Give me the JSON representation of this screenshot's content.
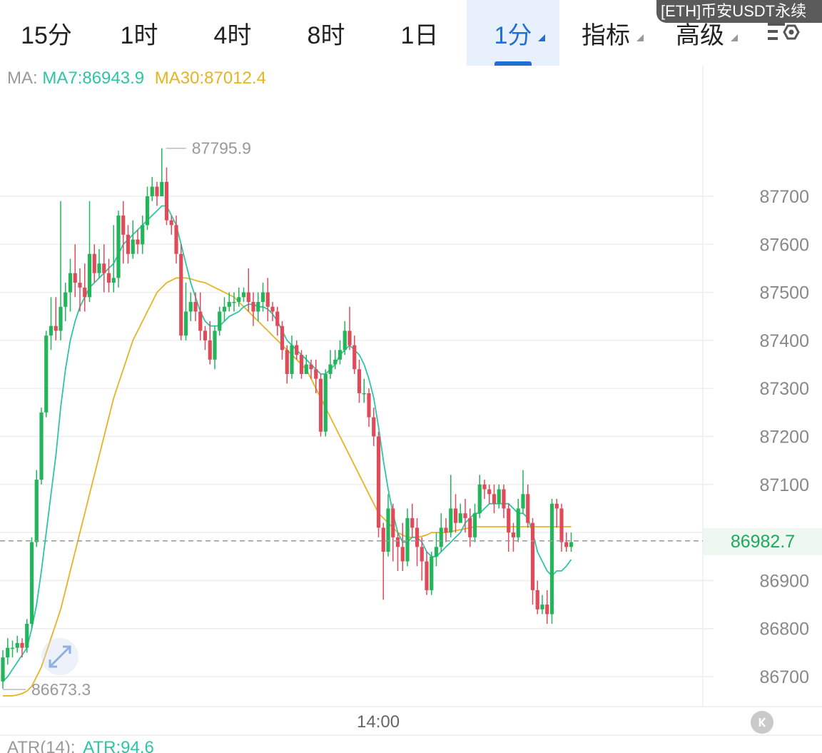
{
  "tabs": [
    {
      "label": "15分",
      "active": false,
      "dropdown": false
    },
    {
      "label": "1时",
      "active": false,
      "dropdown": false
    },
    {
      "label": "4时",
      "active": false,
      "dropdown": false
    },
    {
      "label": "8时",
      "active": false,
      "dropdown": false
    },
    {
      "label": "1日",
      "active": false,
      "dropdown": false
    },
    {
      "label": "1分",
      "active": true,
      "dropdown": true
    },
    {
      "label": "指标",
      "active": false,
      "dropdown": true
    },
    {
      "label": "高级",
      "active": false,
      "dropdown": true
    }
  ],
  "settings_icon": "chart-settings-icon",
  "symbol_badge": "[ETH]币安USDT永续",
  "ma_legend": {
    "label": "MA:",
    "ma7": "MA7:86943.9",
    "ma30": "MA30:87012.4"
  },
  "colors": {
    "up": "#22b55a",
    "down": "#e04b5a",
    "ma7": "#2ec4a6",
    "ma30": "#e6b422",
    "accent": "#1f6fd6"
  },
  "chart_data": {
    "type": "candlestick",
    "interval": "1分",
    "y_axis_labels": [
      "87700",
      "87600",
      "87500",
      "87400",
      "87300",
      "87200",
      "87100",
      "86900",
      "86800",
      "86700"
    ],
    "ylim": [
      86640,
      87920
    ],
    "x_axis_label": "14:00",
    "current_price": "86982.7",
    "high_marker": "87795.9",
    "low_marker": "86673.3",
    "candles": [
      [
        86690,
        86740,
        86675,
        86755
      ],
      [
        86740,
        86760,
        86725,
        86780
      ],
      [
        86760,
        86760,
        86740,
        86775
      ],
      [
        86760,
        86770,
        86750,
        86785
      ],
      [
        86770,
        86760,
        86740,
        86780
      ],
      [
        86760,
        86810,
        86750,
        86820
      ],
      [
        86810,
        86980,
        86800,
        86990
      ],
      [
        86980,
        87110,
        86970,
        87130
      ],
      [
        87110,
        87250,
        87100,
        87260
      ],
      [
        87250,
        87410,
        87240,
        87420
      ],
      [
        87410,
        87430,
        87380,
        87490
      ],
      [
        87430,
        87420,
        87400,
        87490
      ],
      [
        87420,
        87470,
        87400,
        87690
      ],
      [
        87470,
        87500,
        87440,
        87520
      ],
      [
        87500,
        87540,
        87460,
        87570
      ],
      [
        87540,
        87520,
        87490,
        87600
      ],
      [
        87520,
        87510,
        87460,
        87550
      ],
      [
        87510,
        87490,
        87460,
        87560
      ],
      [
        87490,
        87580,
        87480,
        87690
      ],
      [
        87580,
        87540,
        87520,
        87600
      ],
      [
        87540,
        87560,
        87530,
        87590
      ],
      [
        87560,
        87540,
        87500,
        87600
      ],
      [
        87540,
        87520,
        87500,
        87570
      ],
      [
        87520,
        87530,
        87500,
        87640
      ],
      [
        87530,
        87660,
        87510,
        87670
      ],
      [
        87660,
        87620,
        87560,
        87690
      ],
      [
        87620,
        87580,
        87560,
        87640
      ],
      [
        87580,
        87610,
        87570,
        87650
      ],
      [
        87610,
        87600,
        87580,
        87630
      ],
      [
        87600,
        87640,
        87580,
        87660
      ],
      [
        87640,
        87700,
        87630,
        87720
      ],
      [
        87700,
        87720,
        87690,
        87740
      ],
      [
        87720,
        87700,
        87680,
        87730
      ],
      [
        87700,
        87730,
        87700,
        87800
      ],
      [
        87730,
        87650,
        87640,
        87760
      ],
      [
        87650,
        87640,
        87620,
        87660
      ],
      [
        87640,
        87580,
        87560,
        87660
      ],
      [
        87580,
        87410,
        87400,
        87600
      ],
      [
        87410,
        87460,
        87400,
        87520
      ],
      [
        87460,
        87480,
        87440,
        87500
      ],
      [
        87480,
        87460,
        87440,
        87500
      ],
      [
        87460,
        87420,
        87400,
        87500
      ],
      [
        87420,
        87400,
        87380,
        87430
      ],
      [
        87400,
        87360,
        87350,
        87440
      ],
      [
        87360,
        87420,
        87340,
        87430
      ],
      [
        87420,
        87460,
        87410,
        87470
      ],
      [
        87460,
        87470,
        87440,
        87490
      ],
      [
        87470,
        87480,
        87460,
        87500
      ],
      [
        87480,
        87480,
        87460,
        87500
      ],
      [
        87480,
        87490,
        87470,
        87510
      ],
      [
        87490,
        87500,
        87480,
        87510
      ],
      [
        87500,
        87480,
        87460,
        87550
      ],
      [
        87480,
        87460,
        87430,
        87500
      ],
      [
        87460,
        87480,
        87440,
        87500
      ],
      [
        87480,
        87500,
        87460,
        87520
      ],
      [
        87500,
        87470,
        87440,
        87530
      ],
      [
        87470,
        87460,
        87440,
        87480
      ],
      [
        87460,
        87430,
        87410,
        87470
      ],
      [
        87430,
        87380,
        87360,
        87440
      ],
      [
        87380,
        87330,
        87310,
        87390
      ],
      [
        87330,
        87390,
        87320,
        87410
      ],
      [
        87390,
        87370,
        87360,
        87400
      ],
      [
        87370,
        87330,
        87320,
        87380
      ],
      [
        87330,
        87350,
        87330,
        87370
      ],
      [
        87350,
        87340,
        87320,
        87360
      ],
      [
        87340,
        87320,
        87290,
        87360
      ],
      [
        87320,
        87210,
        87200,
        87330
      ],
      [
        87210,
        87330,
        87200,
        87340
      ],
      [
        87330,
        87350,
        87320,
        87380
      ],
      [
        87350,
        87360,
        87340,
        87380
      ],
      [
        87360,
        87380,
        87350,
        87400
      ],
      [
        87380,
        87420,
        87370,
        87440
      ],
      [
        87420,
        87390,
        87380,
        87470
      ],
      [
        87390,
        87340,
        87330,
        87410
      ],
      [
        87340,
        87290,
        87270,
        87360
      ],
      [
        87290,
        87290,
        87270,
        87320
      ],
      [
        87290,
        87240,
        87220,
        87300
      ],
      [
        87240,
        87200,
        87180,
        87260
      ],
      [
        87200,
        87010,
        86990,
        87210
      ],
      [
        87010,
        86960,
        86860,
        87020
      ],
      [
        86960,
        87050,
        86950,
        87080
      ],
      [
        87050,
        86990,
        86940,
        87060
      ],
      [
        86990,
        86970,
        86920,
        87000
      ],
      [
        86970,
        86940,
        86920,
        87020
      ],
      [
        86940,
        87030,
        86930,
        87050
      ],
      [
        87030,
        87010,
        86990,
        87060
      ],
      [
        87010,
        86970,
        86930,
        87030
      ],
      [
        86970,
        86940,
        86900,
        86990
      ],
      [
        86940,
        86880,
        86870,
        86960
      ],
      [
        86880,
        86950,
        86870,
        86960
      ],
      [
        86950,
        86970,
        86930,
        87000
      ],
      [
        86970,
        87010,
        86960,
        87040
      ],
      [
        87010,
        87000,
        86980,
        87030
      ],
      [
        87000,
        87050,
        86990,
        87120
      ],
      [
        87050,
        87020,
        87000,
        87080
      ],
      [
        87020,
        87040,
        87020,
        87060
      ],
      [
        87040,
        87030,
        87000,
        87070
      ],
      [
        87030,
        86990,
        86970,
        87050
      ],
      [
        86990,
        87040,
        86980,
        87060
      ],
      [
        87040,
        87100,
        87030,
        87120
      ],
      [
        87100,
        87090,
        87070,
        87110
      ],
      [
        87090,
        87080,
        87060,
        87100
      ],
      [
        87080,
        87060,
        87040,
        87100
      ],
      [
        87060,
        87090,
        87050,
        87100
      ],
      [
        87090,
        87050,
        87030,
        87100
      ],
      [
        87050,
        87000,
        86960,
        87060
      ],
      [
        87000,
        86990,
        86960,
        87020
      ],
      [
        86990,
        87050,
        86980,
        87070
      ],
      [
        87050,
        87080,
        87040,
        87130
      ],
      [
        87080,
        87020,
        87010,
        87100
      ],
      [
        87020,
        86880,
        86850,
        87030
      ],
      [
        86880,
        86840,
        86830,
        86900
      ],
      [
        86840,
        86850,
        86830,
        86870
      ],
      [
        86850,
        86830,
        86810,
        86880
      ],
      [
        86830,
        87060,
        86810,
        87070
      ],
      [
        87060,
        87050,
        87010,
        87070
      ],
      [
        87050,
        86980,
        86960,
        87060
      ],
      [
        86980,
        86970,
        86960,
        87000
      ],
      [
        86970,
        86980,
        86960,
        87000
      ]
    ],
    "ma7": [
      86690,
      86700,
      86715,
      86730,
      86745,
      86760,
      86800,
      86850,
      86920,
      87000,
      87080,
      87160,
      87260,
      87340,
      87400,
      87440,
      87470,
      87490,
      87510,
      87520,
      87530,
      87540,
      87550,
      87560,
      87580,
      87600,
      87610,
      87620,
      87630,
      87640,
      87650,
      87660,
      87670,
      87680,
      87680,
      87660,
      87640,
      87600,
      87560,
      87520,
      87490,
      87460,
      87440,
      87430,
      87430,
      87430,
      87440,
      87450,
      87455,
      87460,
      87470,
      87475,
      87475,
      87470,
      87470,
      87465,
      87455,
      87440,
      87420,
      87400,
      87390,
      87380,
      87370,
      87360,
      87350,
      87340,
      87330,
      87330,
      87340,
      87350,
      87370,
      87380,
      87390,
      87380,
      87370,
      87350,
      87320,
      87280,
      87220,
      87150,
      87090,
      87040,
      87000,
      86980,
      86980,
      86990,
      86990,
      86980,
      86960,
      86950,
      86950,
      86960,
      86970,
      86980,
      86990,
      87000,
      87020,
      87030,
      87040,
      87040,
      87050,
      87060,
      87060,
      87060,
      87060,
      87060,
      87050,
      87040,
      87040,
      87030,
      87000,
      86960,
      86940,
      86920,
      86910,
      86920,
      86920,
      86930,
      86943.9
    ],
    "ma30": [
      86660,
      86660,
      86660,
      86662,
      86665,
      86670,
      86680,
      86700,
      86720,
      86750,
      86780,
      86810,
      86840,
      86880,
      86920,
      86960,
      87000,
      87040,
      87080,
      87120,
      87160,
      87200,
      87240,
      87280,
      87310,
      87340,
      87370,
      87400,
      87420,
      87440,
      87460,
      87480,
      87500,
      87510,
      87520,
      87525,
      87530,
      87530,
      87530,
      87528,
      87525,
      87522,
      87520,
      87515,
      87510,
      87505,
      87500,
      87495,
      87490,
      87480,
      87470,
      87460,
      87450,
      87440,
      87430,
      87420,
      87410,
      87400,
      87390,
      87380,
      87370,
      87360,
      87350,
      87340,
      87320,
      87300,
      87280,
      87260,
      87240,
      87220,
      87200,
      87180,
      87160,
      87140,
      87120,
      87100,
      87080,
      87060,
      87040,
      87030,
      87020,
      87010,
      87000,
      86995,
      86990,
      86990,
      86990,
      86992,
      86995,
      87000,
      87000,
      87000,
      87000,
      87002,
      87004,
      87006,
      87008,
      87010,
      87012,
      87012,
      87012,
      87012,
      87012,
      87012,
      87012,
      87012,
      87012,
      87012,
      87012,
      87012,
      87012,
      87012,
      87012,
      87012,
      87012,
      87012,
      87012,
      87012,
      87012.4
    ]
  },
  "atr_legend": {
    "label": "ATR(14):",
    "value": "ATR:94.6"
  },
  "zoom_icon": "expand-arrows-icon",
  "collapse_icon": "collapse-left-icon"
}
